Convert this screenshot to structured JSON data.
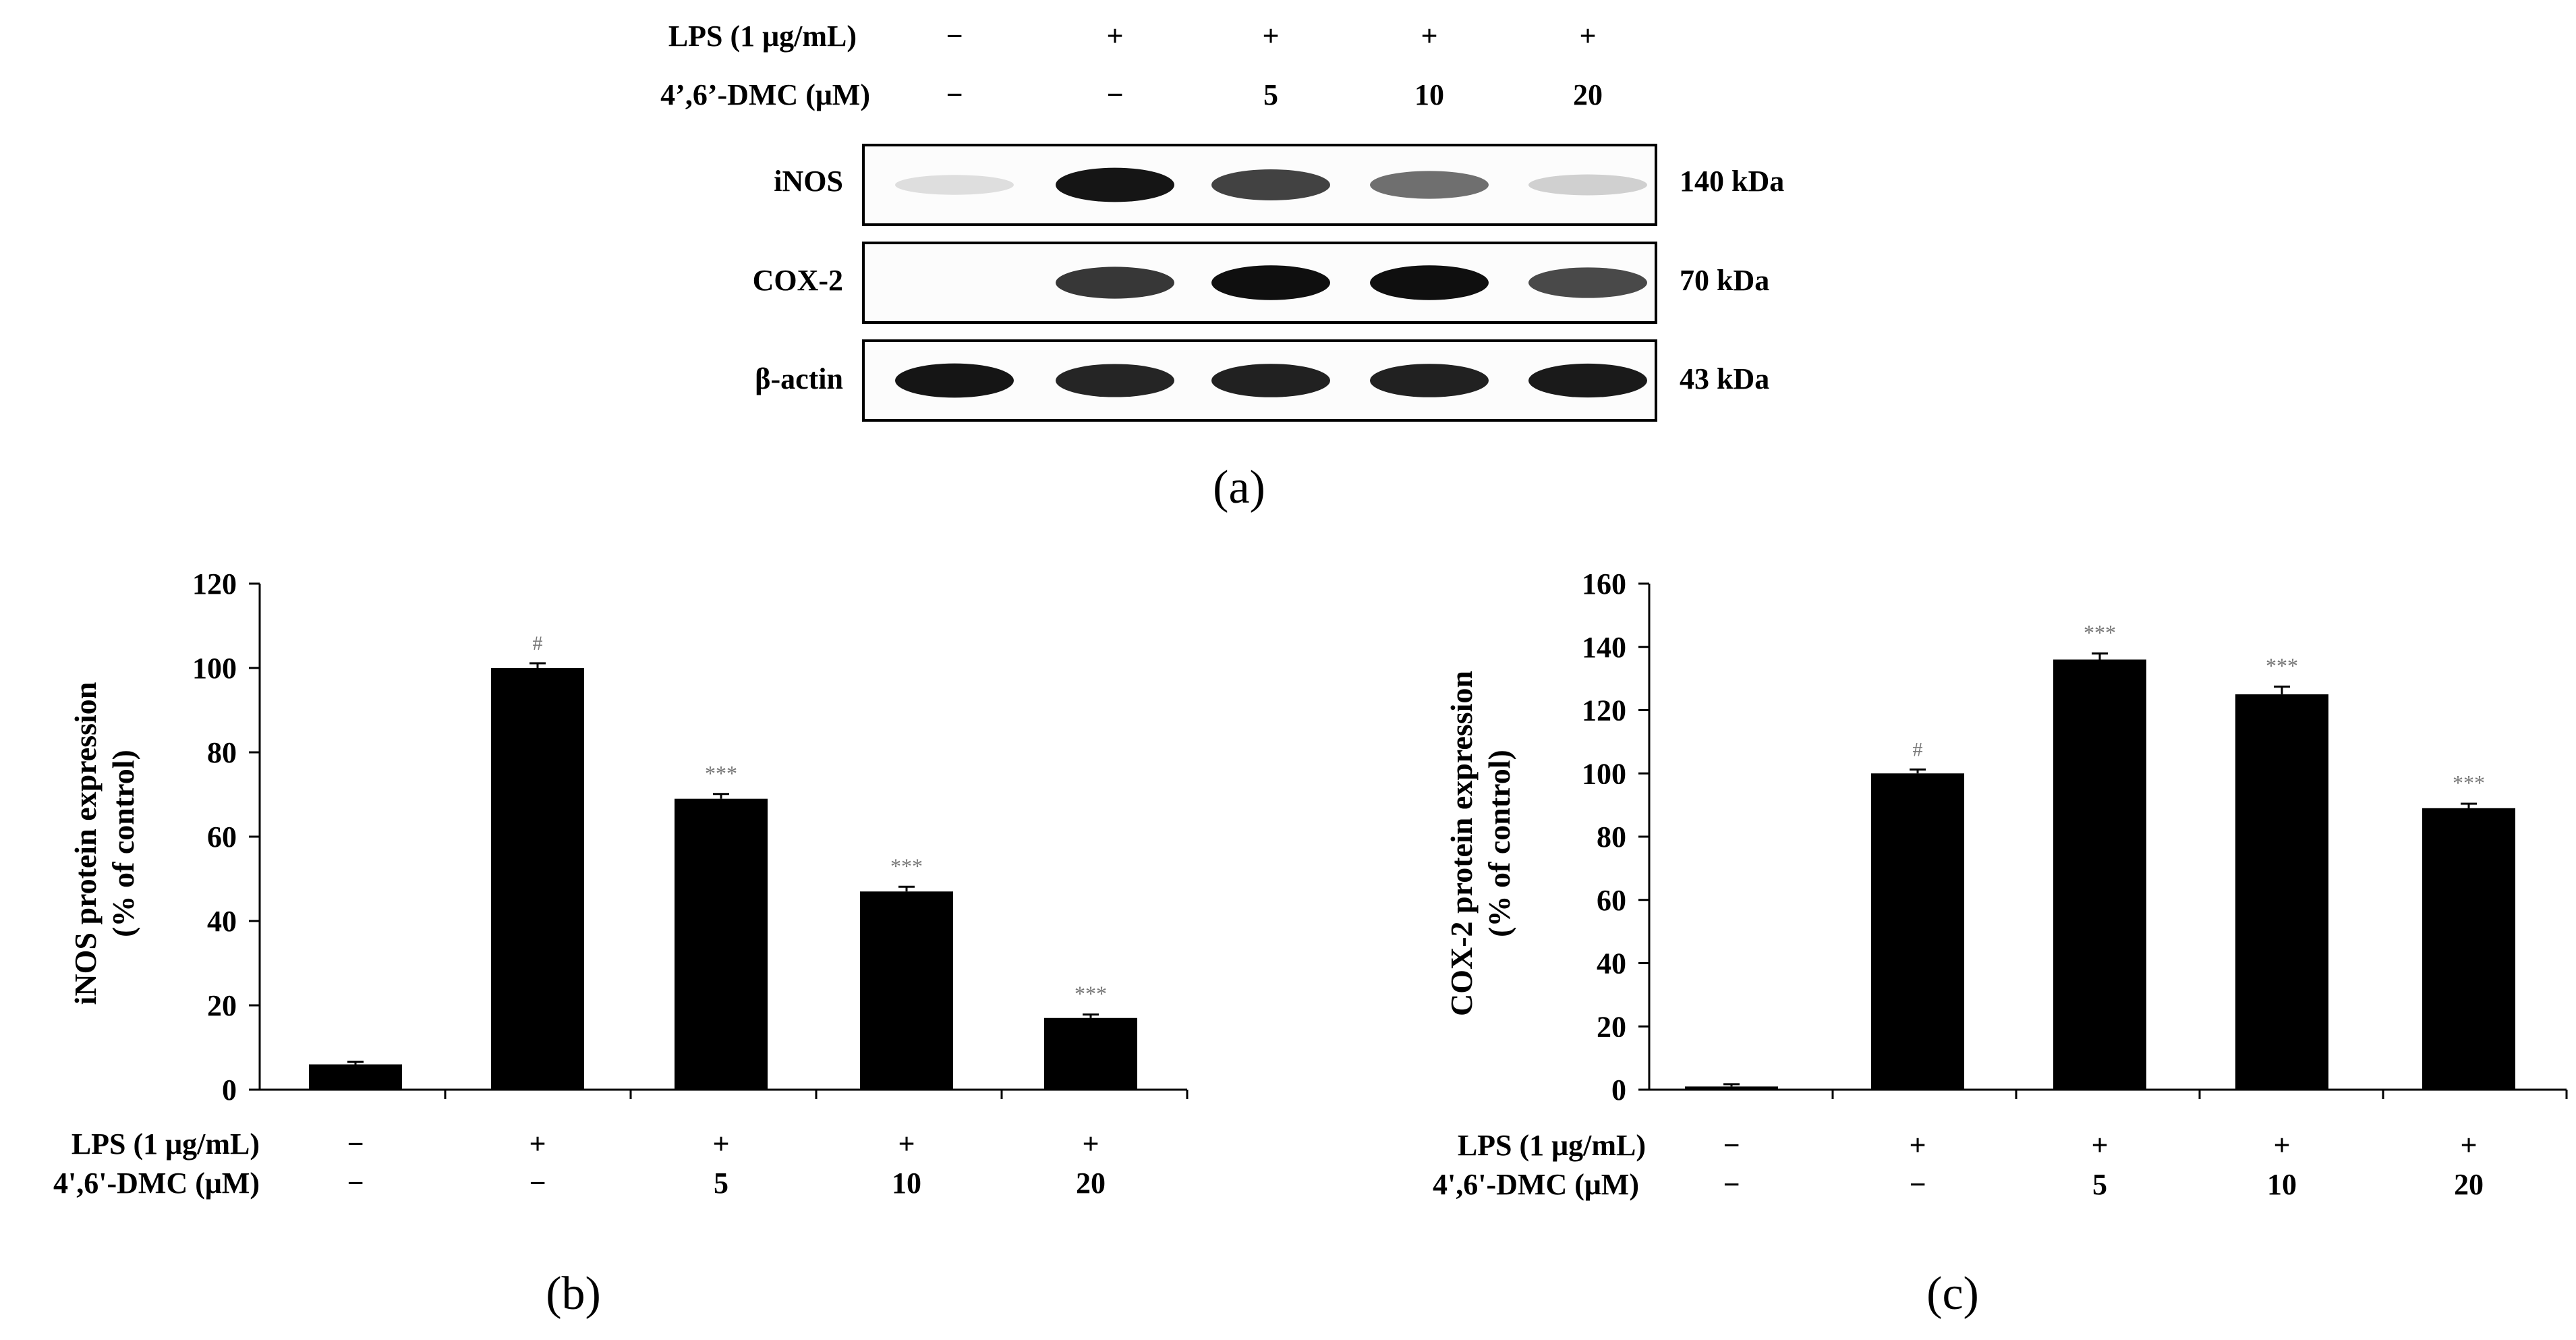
{
  "panel_a": {
    "caption": "(a)",
    "treatment_rows": [
      {
        "label": "LPS (1 μg/mL)",
        "values": [
          "−",
          "+",
          "+",
          "+",
          "+"
        ]
      },
      {
        "label": "4’,6’-DMC (μM)",
        "values": [
          "−",
          "−",
          "5",
          "10",
          "20"
        ]
      }
    ],
    "blots": [
      {
        "name": "iNOS",
        "size": "140 kDa",
        "intensities": [
          0.06,
          0.95,
          0.75,
          0.55,
          0.12
        ]
      },
      {
        "name": "COX-2",
        "size": "70 kDa",
        "intensities": [
          0.0,
          0.8,
          0.98,
          0.98,
          0.72
        ]
      },
      {
        "name": "β-actin",
        "size": "43 kDa",
        "intensities": [
          0.95,
          0.88,
          0.9,
          0.9,
          0.93
        ]
      }
    ]
  },
  "chart_data": [
    {
      "type": "bar",
      "panel": "b",
      "caption": "(b)",
      "ylabel_line1": "iNOS protein expression",
      "ylabel_line2": "(% of control)",
      "ylim": [
        0,
        120
      ],
      "yticks": [
        0,
        20,
        40,
        60,
        80,
        100,
        120
      ],
      "values": [
        6,
        100,
        69,
        47,
        17
      ],
      "errors": [
        0.3,
        0.8,
        0.8,
        0.8,
        0.5
      ],
      "annotations": [
        "",
        "#",
        "***",
        "***",
        "***"
      ],
      "treatment_rows": [
        {
          "label": "LPS (1 μg/mL)",
          "values": [
            "−",
            "+",
            "+",
            "+",
            "+"
          ]
        },
        {
          "label": "4',6'-DMC (μM)",
          "values": [
            "−",
            "−",
            "5",
            "10",
            "20"
          ]
        }
      ]
    },
    {
      "type": "bar",
      "panel": "c",
      "caption": "(c)",
      "ylabel_line1": "COX-2 protein expression",
      "ylabel_line2": "(% of control)",
      "ylim": [
        0,
        160
      ],
      "yticks": [
        0,
        20,
        40,
        60,
        80,
        100,
        120,
        140,
        160
      ],
      "values": [
        1,
        100,
        136,
        125,
        89
      ],
      "errors": [
        0.3,
        0.8,
        1.5,
        2.0,
        1.0
      ],
      "annotations": [
        "",
        "#",
        "***",
        "***",
        "***"
      ],
      "treatment_rows": [
        {
          "label": "LPS (1 μg/mL)",
          "values": [
            "−",
            "+",
            "+",
            "+",
            "+"
          ]
        },
        {
          "label": "4',6'-DMC (μM)",
          "values": [
            "−",
            "−",
            "5",
            "10",
            "20"
          ]
        }
      ]
    }
  ]
}
